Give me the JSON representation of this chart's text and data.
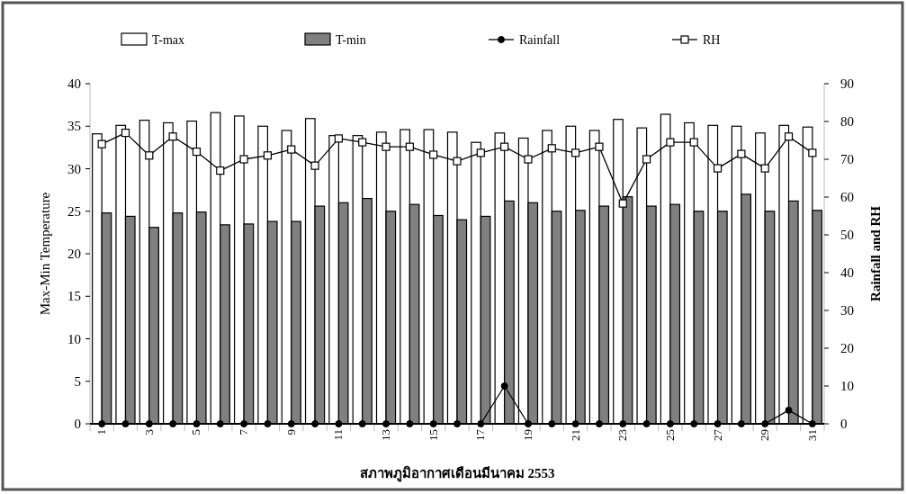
{
  "chart_data": {
    "type": "bar",
    "xlabel": "สภาพภูมิอากาศเดือนมีนาคม 2553",
    "ylabel": "Max-Min Temperature",
    "y2label": "Rainfall and RH",
    "categories": [
      "1",
      null,
      "3",
      null,
      "5",
      null,
      "7",
      null,
      "9",
      null,
      "11",
      null,
      "13",
      null,
      "15",
      null,
      "17",
      null,
      "19",
      null,
      "21",
      null,
      "23",
      null,
      "25",
      null,
      "27",
      null,
      "29",
      null,
      "31"
    ],
    "series": [
      {
        "name": "T-max",
        "color": "#ffffff",
        "values": [
          34.1,
          35.1,
          35.7,
          35.4,
          35.6,
          36.6,
          36.2,
          35.0,
          34.5,
          35.9,
          33.9,
          33.9,
          34.3,
          34.6,
          34.6,
          34.3,
          33.1,
          34.2,
          33.6,
          34.5,
          35.0,
          34.5,
          35.8,
          34.8,
          36.4,
          35.4,
          35.1,
          35.0,
          34.2,
          35.1,
          34.9
        ]
      },
      {
        "name": "T-min",
        "color": "#808080",
        "values": [
          24.8,
          24.4,
          23.1,
          24.8,
          24.9,
          23.4,
          23.5,
          23.8,
          23.8,
          25.6,
          26.0,
          26.5,
          25.0,
          25.8,
          24.5,
          24.0,
          24.4,
          26.2,
          26.0,
          25.0,
          25.1,
          25.6,
          26.7,
          25.6,
          25.8,
          25.0,
          25.0,
          27.0,
          25.0,
          26.2,
          25.1
        ]
      },
      {
        "name": "Rainfall",
        "type": "line",
        "axis": "y2",
        "marker": "circle",
        "color": "#000000",
        "values": [
          0,
          0,
          0,
          0,
          0,
          0,
          0,
          0,
          0,
          0,
          0,
          0,
          0,
          0,
          0,
          0,
          0,
          10,
          0,
          0,
          0,
          0,
          0,
          0,
          0,
          0,
          0,
          0,
          0,
          3.6,
          0
        ]
      },
      {
        "name": "RH",
        "type": "line",
        "axis": "y2",
        "marker": "square",
        "color": "#000000",
        "values": [
          74,
          77,
          71,
          76,
          72,
          67,
          70,
          71,
          72.6,
          68.3,
          75.5,
          74.5,
          73.3,
          73.3,
          71.2,
          69.5,
          71.7,
          73.3,
          70,
          72.9,
          71.7,
          73.3,
          58.3,
          70,
          74.5,
          74.5,
          67.6,
          71.4,
          67.6,
          76,
          71.7
        ]
      }
    ],
    "ylim": [
      0,
      40
    ],
    "yticks": [
      0,
      5,
      10,
      15,
      20,
      25,
      30,
      35,
      40
    ],
    "y2lim": [
      0,
      90
    ],
    "y2ticks": [
      0,
      10,
      20,
      30,
      40,
      50,
      60,
      70,
      80,
      90
    ],
    "legend": "top",
    "grid": false
  }
}
